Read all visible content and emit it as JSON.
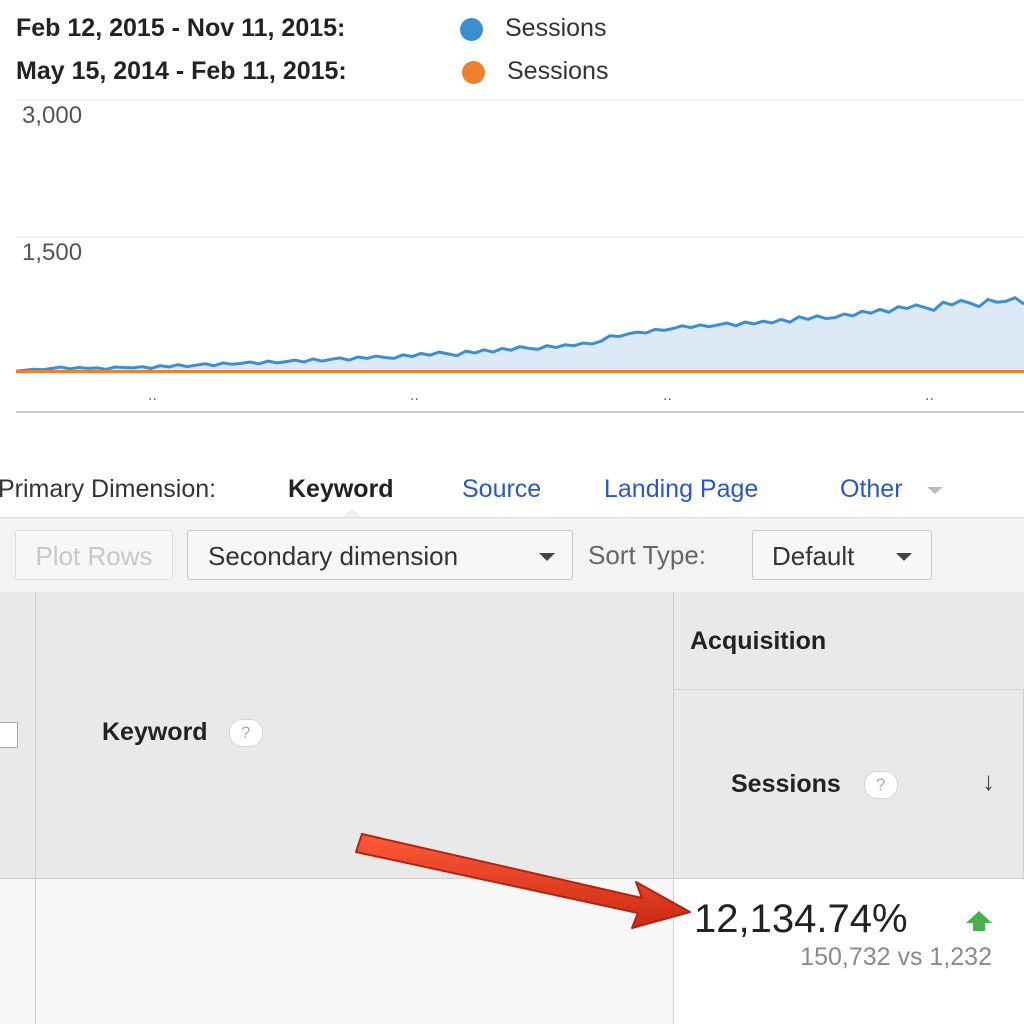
{
  "chart_data": {
    "type": "line",
    "legend": [
      {
        "date_range": "Feb 12, 2015 - Nov 11, 2015:",
        "series": "Sessions",
        "color": "#3b8fd0"
      },
      {
        "date_range": "May 15, 2014 - Feb 11, 2015:",
        "series": "Sessions",
        "color": "#ef7f30"
      }
    ],
    "y_ticks": [
      "3,000",
      "1,500"
    ],
    "ylim": [
      0,
      3000
    ],
    "x_tick_labels": [
      "..",
      "..",
      "..",
      ".."
    ],
    "series": [
      {
        "name": "Sessions",
        "range": "Feb 12, 2015 - Nov 11, 2015",
        "color": "#3b8fd0",
        "values": [
          10,
          20,
          30,
          25,
          40,
          55,
          35,
          50,
          40,
          45,
          30,
          55,
          50,
          45,
          60,
          40,
          70,
          55,
          80,
          60,
          75,
          90,
          70,
          100,
          85,
          95,
          110,
          90,
          120,
          100,
          115,
          130,
          110,
          145,
          120,
          140,
          155,
          130,
          165,
          150,
          175,
          160,
          150,
          190,
          170,
          205,
          185,
          220,
          200,
          180,
          230,
          210,
          245,
          220,
          260,
          240,
          280,
          260,
          250,
          290,
          270,
          300,
          290,
          320,
          310,
          340,
          400,
          390,
          420,
          440,
          430,
          470,
          460,
          480,
          510,
          490,
          520,
          500,
          520,
          540,
          510,
          550,
          530,
          560,
          540,
          580,
          550,
          610,
          580,
          620,
          590,
          600,
          640,
          620,
          670,
          650,
          690,
          660,
          720,
          700,
          740,
          710,
          680,
          770,
          740,
          790,
          760,
          720,
          800,
          770,
          780,
          820,
          750
        ]
      },
      {
        "name": "Sessions",
        "range": "May 15, 2014 - Feb 11, 2015",
        "color": "#ef7f30",
        "values": [
          5,
          5,
          5,
          5,
          5,
          5,
          5,
          5,
          5,
          5,
          5,
          5,
          5,
          5,
          5,
          5,
          5,
          5,
          5,
          5,
          5,
          5,
          5,
          5,
          5,
          5,
          5,
          5,
          5,
          5,
          5,
          5,
          5,
          5,
          5,
          5,
          5,
          5,
          5,
          5
        ]
      }
    ]
  },
  "dimension_bar": {
    "label": "Primary Dimension:",
    "active": "Keyword",
    "links": [
      "Source",
      "Landing Page",
      "Other"
    ]
  },
  "toolbar": {
    "plot_rows": "Plot Rows",
    "secondary_dimension": "Secondary dimension",
    "sort_type_label": "Sort Type:",
    "sort_value": "Default"
  },
  "table": {
    "keyword_header": "Keyword",
    "group_header": "Acquisition",
    "sessions_header": "Sessions",
    "help_glyph": "?",
    "sort_arrow": "↓",
    "row": {
      "change": "12,134.74%",
      "comparison": "150,732 vs 1,232",
      "trend_color": "#4bb04b"
    }
  },
  "annotation": {
    "arrow_color": "#e23a1e"
  }
}
